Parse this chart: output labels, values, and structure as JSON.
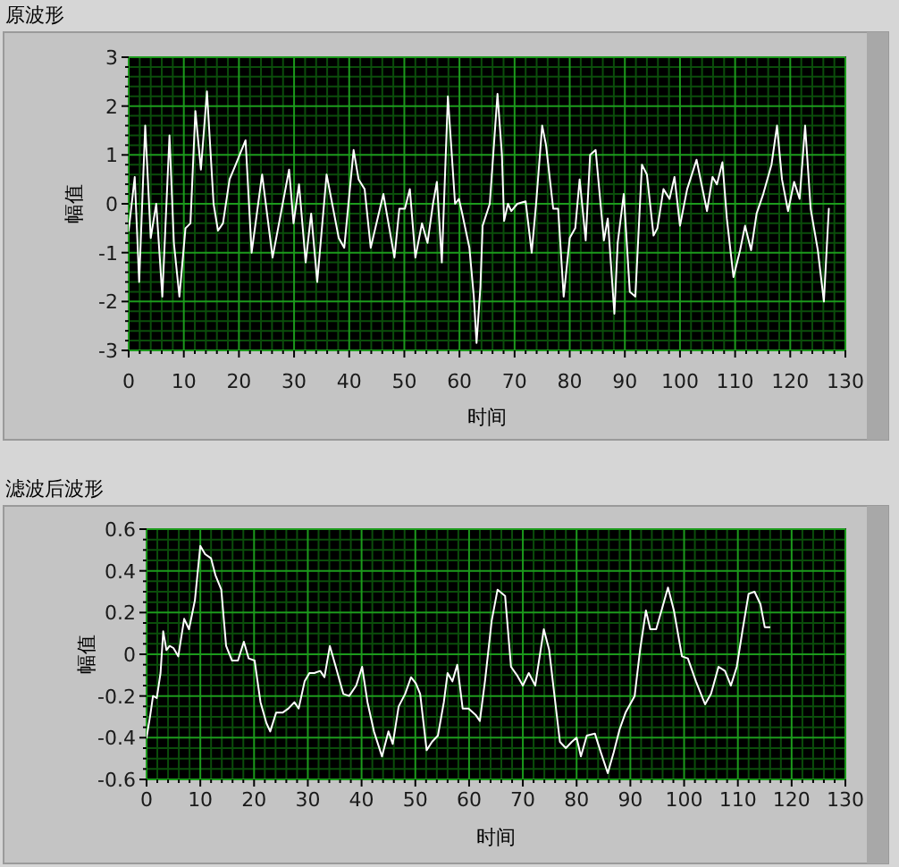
{
  "chart_data": [
    {
      "type": "line",
      "title": "原波形",
      "xlabel": "时间",
      "ylabel": "幅值",
      "xlim": [
        0,
        130
      ],
      "xticks": [
        0,
        {
          "value": 2,
          "label": null
        },
        {
          "value": 4,
          "label": null
        },
        {
          "value": 6,
          "label": null
        },
        {
          "value": 8,
          "label": null
        },
        10,
        {
          "value": 12,
          "label": null
        },
        {
          "value": 14,
          "label": null
        },
        {
          "value": 16,
          "label": null
        },
        {
          "value": 18,
          "label": null
        },
        20,
        {
          "value": 22,
          "label": null
        },
        {
          "value": 24,
          "label": null
        },
        {
          "value": 26,
          "label": null
        },
        {
          "value": 28,
          "label": null
        },
        30,
        {
          "value": 32,
          "label": null
        },
        {
          "value": 34,
          "label": null
        },
        {
          "value": 36,
          "label": null
        },
        {
          "value": 38,
          "label": null
        },
        40,
        {
          "value": 42,
          "label": null
        },
        {
          "value": 44,
          "label": null
        },
        {
          "value": 46,
          "label": null
        },
        {
          "value": 48,
          "label": null
        },
        50,
        {
          "value": 52,
          "label": null
        },
        {
          "value": 54,
          "label": null
        },
        {
          "value": 56,
          "label": null
        },
        {
          "value": 58,
          "label": null
        },
        60,
        {
          "value": 62,
          "label": null
        },
        {
          "value": 64,
          "label": null
        },
        {
          "value": 66,
          "label": null
        },
        {
          "value": 68,
          "label": null
        },
        70,
        {
          "value": 72,
          "label": null
        },
        {
          "value": 74,
          "label": null
        },
        {
          "value": 76,
          "label": null
        },
        {
          "value": 78,
          "label": null
        },
        80,
        {
          "value": 82,
          "label": null
        },
        {
          "value": 84,
          "label": null
        },
        {
          "value": 86,
          "label": null
        },
        {
          "value": 88,
          "label": null
        },
        90,
        {
          "value": 92,
          "label": null
        },
        {
          "value": 94,
          "label": null
        },
        {
          "value": 96,
          "label": null
        },
        {
          "value": 98,
          "label": null
        },
        100,
        {
          "value": 102,
          "label": null
        },
        {
          "value": 104,
          "label": null
        },
        {
          "value": 106,
          "label": null
        },
        {
          "value": 108,
          "label": null
        },
        110,
        {
          "value": 112,
          "label": null
        },
        {
          "value": 114,
          "label": null
        },
        {
          "value": 116,
          "label": null
        },
        {
          "value": 118,
          "label": null
        },
        120,
        {
          "value": 122,
          "label": null
        },
        {
          "value": 124,
          "label": null
        },
        {
          "value": 126,
          "label": null
        },
        {
          "value": 128,
          "label": null
        },
        130
      ],
      "ylim": [
        -3,
        3
      ],
      "yticks": [
        -3,
        {
          "value": -2.8,
          "label": null
        },
        {
          "value": -2.6,
          "label": null
        },
        {
          "value": -2.4,
          "label": null
        },
        {
          "value": -2.2,
          "label": null
        },
        -2,
        {
          "value": -1.8,
          "label": null
        },
        {
          "value": -1.6,
          "label": null
        },
        {
          "value": -1.4,
          "label": null
        },
        {
          "value": -1.2,
          "label": null
        },
        -1,
        {
          "value": -0.8,
          "label": null
        },
        {
          "value": -0.6,
          "label": null
        },
        {
          "value": -0.4,
          "label": null
        },
        {
          "value": -0.2,
          "label": null
        },
        0,
        {
          "value": 0.2,
          "label": null
        },
        {
          "value": 0.4,
          "label": null
        },
        {
          "value": 0.6,
          "label": null
        },
        {
          "value": 0.8,
          "label": null
        },
        1,
        {
          "value": 1.2,
          "label": null
        },
        {
          "value": 1.4,
          "label": null
        },
        {
          "value": 1.6,
          "label": null
        },
        {
          "value": 1.8,
          "label": null
        },
        2,
        {
          "value": 2.2,
          "label": null
        },
        {
          "value": 2.4,
          "label": null
        },
        {
          "value": 2.6,
          "label": null
        },
        {
          "value": 2.8,
          "label": null
        },
        3
      ],
      "grid": true,
      "series": [
        {
          "color": "#ffffff",
          "x": [
            0,
            1.1,
            1.9,
            3.0,
            4.0,
            5.0,
            6.1,
            7.4,
            8.2,
            9.2,
            10.3,
            11.2,
            12.1,
            13.1,
            14.2,
            15.4,
            16.2,
            17.1,
            18.3,
            19.4,
            21.2,
            22.3,
            24.2,
            26.1,
            27.1,
            29.1,
            29.9,
            30.9,
            32.1,
            33.1,
            34.2,
            35.9,
            38.1,
            39.1,
            40.8,
            41.7,
            42.8,
            43.9,
            46.2,
            48.2,
            49.1,
            50.1,
            51.0,
            52.0,
            53.2,
            54.2,
            55.2,
            55.9,
            56.8,
            57.9,
            59.2,
            59.9,
            60.5,
            61.8,
            62.6,
            63.1,
            63.8,
            64.2,
            65.5,
            66.9,
            67.7,
            68.1,
            68.8,
            69.4,
            70.5,
            72.0,
            73.1,
            73.9,
            75.0,
            75.7,
            77.0,
            77.9,
            78.9,
            80.0,
            81.0,
            81.8,
            82.9,
            83.7,
            84.7,
            86.2,
            86.9,
            88.1,
            88.7,
            89.8,
            90.9,
            91.9,
            93.1,
            94.0,
            95.2,
            95.9,
            97.0,
            98.1,
            99.0,
            100.0,
            101.3,
            103.0,
            104.9,
            105.9,
            106.7,
            107.7,
            108.5,
            109.7,
            110.9,
            111.8,
            112.9,
            113.9,
            115.1,
            116.6,
            117.6,
            118.5,
            119.6,
            120.7,
            121.7,
            122.7,
            123.7,
            125.0,
            126.1,
            127.0
          ],
          "values": [
            -0.55,
            0.55,
            -1.6,
            1.6,
            -0.7,
            0,
            -1.9,
            1.4,
            -0.8,
            -1.9,
            -0.5,
            -0.4,
            1.9,
            0.7,
            2.3,
            0,
            -0.55,
            -0.4,
            0.5,
            0.8,
            1.3,
            -1.0,
            0.6,
            -1.1,
            -0.5,
            0.7,
            -0.4,
            0.4,
            -1.2,
            -0.2,
            -1.6,
            0.6,
            -0.7,
            -0.9,
            1.1,
            0.5,
            0.3,
            -0.9,
            0.2,
            -1.1,
            -0.1,
            -0.1,
            0.3,
            -1.1,
            -0.4,
            -0.8,
            0,
            0.45,
            -1.2,
            2.2,
            0,
            0.1,
            -0.2,
            -0.9,
            -1.9,
            -2.85,
            -1.7,
            -0.45,
            0,
            2.25,
            1.0,
            -0.35,
            0,
            -0.15,
            0,
            0.05,
            -1.0,
            0,
            1.6,
            1.2,
            -0.1,
            -0.1,
            -1.9,
            -0.7,
            -0.5,
            0.5,
            -0.75,
            1.0,
            1.1,
            -0.75,
            -0.3,
            -2.25,
            -0.8,
            0.2,
            -1.8,
            -1.9,
            0.8,
            0.6,
            -0.65,
            -0.5,
            0.3,
            0.1,
            0.55,
            -0.45,
            0.3,
            0.9,
            -0.15,
            0.55,
            0.4,
            0.85,
            -0.3,
            -1.5,
            -0.95,
            -0.45,
            -0.95,
            -0.2,
            0.2,
            0.8,
            1.6,
            0.5,
            -0.15,
            0.45,
            0.1,
            1.6,
            -0.1,
            -0.95,
            -2.0,
            -0.1
          ]
        }
      ]
    },
    {
      "type": "line",
      "title": "滤波后波形",
      "xlabel": "时间",
      "ylabel": "幅值",
      "xlim": [
        0,
        130
      ],
      "xticks": [
        0,
        {
          "value": 2,
          "label": null
        },
        {
          "value": 4,
          "label": null
        },
        {
          "value": 6,
          "label": null
        },
        {
          "value": 8,
          "label": null
        },
        10,
        {
          "value": 12,
          "label": null
        },
        {
          "value": 14,
          "label": null
        },
        {
          "value": 16,
          "label": null
        },
        {
          "value": 18,
          "label": null
        },
        20,
        {
          "value": 22,
          "label": null
        },
        {
          "value": 24,
          "label": null
        },
        {
          "value": 26,
          "label": null
        },
        {
          "value": 28,
          "label": null
        },
        30,
        {
          "value": 32,
          "label": null
        },
        {
          "value": 34,
          "label": null
        },
        {
          "value": 36,
          "label": null
        },
        {
          "value": 38,
          "label": null
        },
        40,
        {
          "value": 42,
          "label": null
        },
        {
          "value": 44,
          "label": null
        },
        {
          "value": 46,
          "label": null
        },
        {
          "value": 48,
          "label": null
        },
        50,
        {
          "value": 52,
          "label": null
        },
        {
          "value": 54,
          "label": null
        },
        {
          "value": 56,
          "label": null
        },
        {
          "value": 58,
          "label": null
        },
        60,
        {
          "value": 62,
          "label": null
        },
        {
          "value": 64,
          "label": null
        },
        {
          "value": 66,
          "label": null
        },
        {
          "value": 68,
          "label": null
        },
        70,
        {
          "value": 72,
          "label": null
        },
        {
          "value": 74,
          "label": null
        },
        {
          "value": 76,
          "label": null
        },
        {
          "value": 78,
          "label": null
        },
        80,
        {
          "value": 82,
          "label": null
        },
        {
          "value": 84,
          "label": null
        },
        {
          "value": 86,
          "label": null
        },
        {
          "value": 88,
          "label": null
        },
        90,
        {
          "value": 92,
          "label": null
        },
        {
          "value": 94,
          "label": null
        },
        {
          "value": 96,
          "label": null
        },
        {
          "value": 98,
          "label": null
        },
        100,
        {
          "value": 102,
          "label": null
        },
        {
          "value": 104,
          "label": null
        },
        {
          "value": 106,
          "label": null
        },
        {
          "value": 108,
          "label": null
        },
        110,
        {
          "value": 112,
          "label": null
        },
        {
          "value": 114,
          "label": null
        },
        {
          "value": 116,
          "label": null
        },
        {
          "value": 118,
          "label": null
        },
        120,
        {
          "value": 122,
          "label": null
        },
        {
          "value": 124,
          "label": null
        },
        {
          "value": 126,
          "label": null
        },
        {
          "value": 128,
          "label": null
        },
        130
      ],
      "ylim": [
        -0.6,
        0.6
      ],
      "yticks": [
        -0.6,
        {
          "value": -0.55,
          "label": null
        },
        {
          "value": -0.5,
          "label": null
        },
        {
          "value": -0.45,
          "label": null
        },
        -0.4,
        {
          "value": -0.35,
          "label": null
        },
        {
          "value": -0.3,
          "label": null
        },
        {
          "value": -0.25,
          "label": null
        },
        -0.2,
        {
          "value": -0.15,
          "label": null
        },
        {
          "value": -0.1,
          "label": null
        },
        {
          "value": -0.05,
          "label": null
        },
        0,
        {
          "value": 0.05,
          "label": null
        },
        {
          "value": 0.1,
          "label": null
        },
        {
          "value": 0.15,
          "label": null
        },
        0.2,
        {
          "value": 0.25,
          "label": null
        },
        {
          "value": 0.3,
          "label": null
        },
        {
          "value": 0.35,
          "label": null
        },
        0.4,
        {
          "value": 0.45,
          "label": null
        },
        {
          "value": 0.5,
          "label": null
        },
        {
          "value": 0.55,
          "label": null
        },
        0.6
      ],
      "grid": true,
      "series": [
        {
          "color": "#ffffff",
          "x": [
            0,
            0.7,
            1.2,
            1.9,
            2.6,
            3.1,
            3.7,
            4.3,
            5.0,
            5.9,
            7.0,
            7.9,
            9.0,
            10.0,
            10.9,
            12.0,
            12.8,
            13.9,
            14.8,
            15.9,
            17.0,
            18.1,
            19.0,
            20.1,
            21.2,
            22.3,
            23.0,
            24.1,
            25.3,
            26.4,
            27.5,
            28.3,
            29.4,
            30.3,
            31.2,
            32.3,
            33.1,
            34.1,
            35.2,
            36.6,
            37.7,
            39.0,
            40.1,
            41.1,
            42.3,
            43.8,
            45.0,
            45.8,
            46.9,
            48.1,
            49.2,
            50.1,
            50.9,
            52.1,
            53.1,
            54.2,
            55.3,
            56.0,
            56.9,
            57.8,
            58.8,
            59.9,
            61.2,
            62.0,
            63.0,
            64.2,
            65.3,
            66.7,
            67.8,
            68.9,
            70.0,
            71.1,
            72.3,
            73.9,
            74.9,
            75.8,
            76.9,
            78.0,
            79.1,
            80.0,
            80.8,
            81.9,
            83.4,
            84.5,
            85.8,
            86.9,
            88.0,
            89.1,
            90.8,
            91.8,
            92.9,
            93.7,
            94.8,
            95.9,
            97.0,
            98.1,
            99.6,
            100.7,
            102.2,
            103.9,
            105.0,
            106.4,
            107.6,
            108.7,
            109.8,
            110.9,
            112.0,
            113.1,
            114.2,
            115.0,
            115.9
          ],
          "values": [
            -0.4,
            -0.29,
            -0.2,
            -0.21,
            -0.09,
            0.11,
            0.02,
            0.04,
            0.03,
            -0.01,
            0.17,
            0.12,
            0.26,
            0.52,
            0.48,
            0.46,
            0.38,
            0.31,
            0.04,
            -0.03,
            -0.03,
            0.06,
            -0.02,
            -0.03,
            -0.23,
            -0.33,
            -0.37,
            -0.28,
            -0.28,
            -0.26,
            -0.23,
            -0.26,
            -0.13,
            -0.09,
            -0.09,
            -0.08,
            -0.11,
            0.04,
            -0.06,
            -0.19,
            -0.2,
            -0.15,
            -0.06,
            -0.23,
            -0.37,
            -0.49,
            -0.37,
            -0.43,
            -0.25,
            -0.19,
            -0.11,
            -0.14,
            -0.19,
            -0.46,
            -0.42,
            -0.39,
            -0.23,
            -0.09,
            -0.13,
            -0.05,
            -0.26,
            -0.26,
            -0.29,
            -0.32,
            -0.12,
            0.16,
            0.31,
            0.28,
            -0.06,
            -0.1,
            -0.15,
            -0.09,
            -0.15,
            0.12,
            0.02,
            -0.18,
            -0.42,
            -0.45,
            -0.42,
            -0.4,
            -0.49,
            -0.39,
            -0.38,
            -0.47,
            -0.57,
            -0.47,
            -0.36,
            -0.28,
            -0.2,
            0.02,
            0.21,
            0.12,
            0.12,
            0.22,
            0.32,
            0.21,
            -0.01,
            -0.02,
            -0.13,
            -0.24,
            -0.19,
            -0.06,
            -0.08,
            -0.15,
            -0.06,
            0.12,
            0.29,
            0.3,
            0.24,
            0.13,
            0.13
          ]
        }
      ]
    }
  ]
}
